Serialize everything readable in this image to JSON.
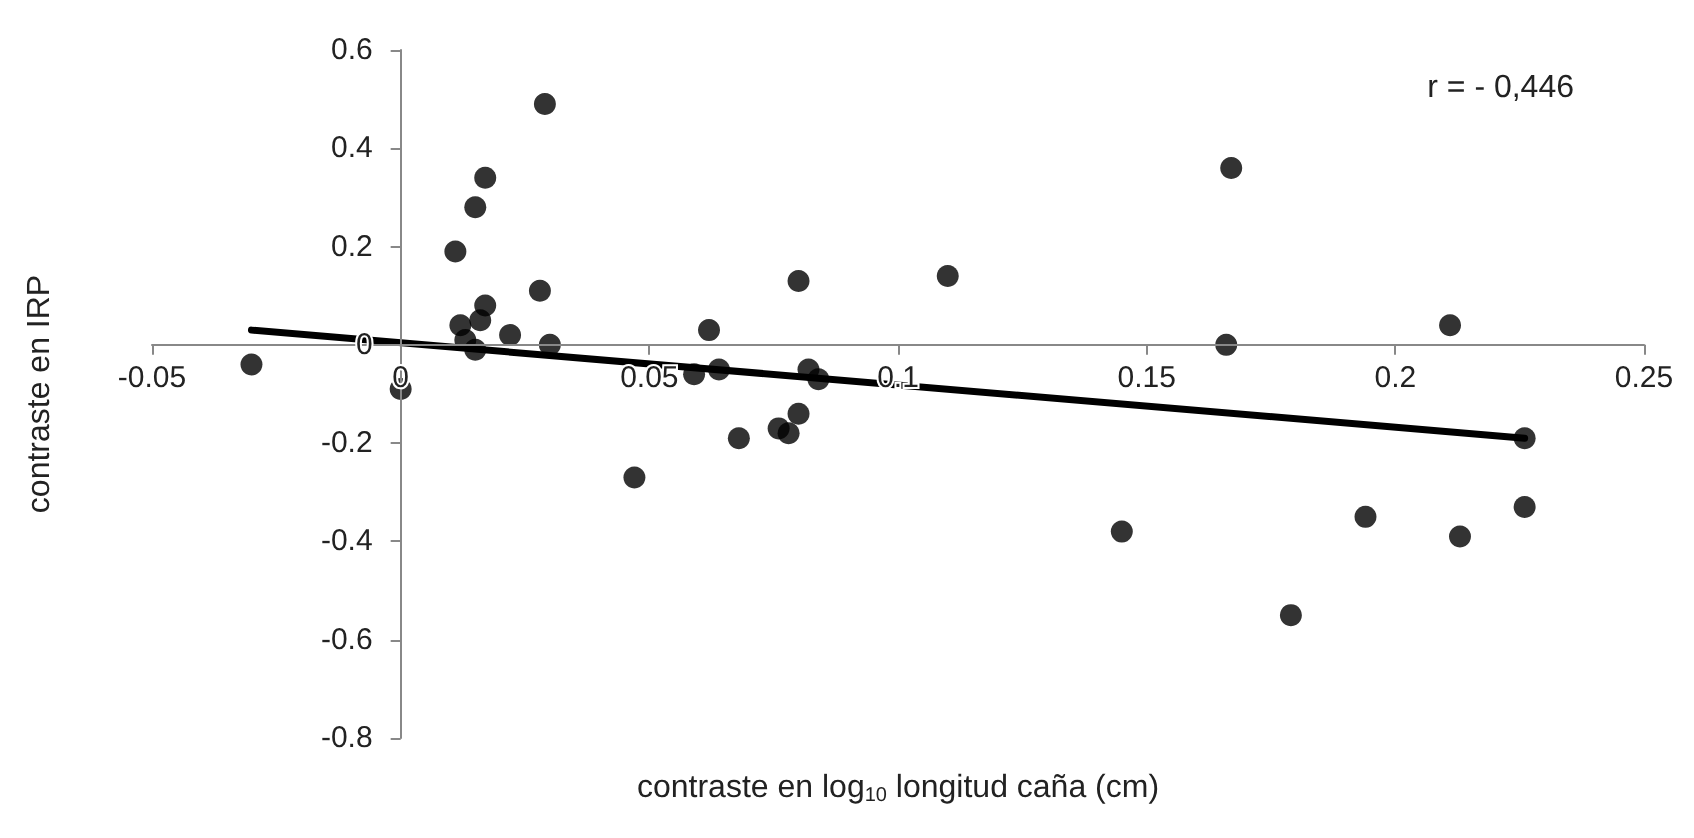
{
  "chart_data": {
    "type": "scatter",
    "xlabel": "contraste en log$_{10}$ longitud caña (cm)",
    "ylabel": "contraste en IRP",
    "annotations": [
      "r = - 0,446"
    ],
    "x": [
      -0.03,
      0,
      0.011,
      0.012,
      0.013,
      0.015,
      0.015,
      0.016,
      0.017,
      0.017,
      0.022,
      0.029,
      0.028,
      0.03,
      0.047,
      0.059,
      0.062,
      0.064,
      0.068,
      0.076,
      0.078,
      0.08,
      0.08,
      0.082,
      0.084,
      0.11,
      0.145,
      0.166,
      0.167,
      0.179,
      0.194,
      0.211,
      0.213,
      0.226,
      0.226
    ],
    "series": [
      {
        "color": "#000000",
        "values": [
          -0.04,
          -0.09,
          0.19,
          0.04,
          0.01,
          -0.01,
          0.28,
          0.05,
          0.08,
          0.34,
          0.02,
          0.49,
          0.11,
          0.0,
          -0.27,
          -0.06,
          0.03,
          -0.05,
          -0.19,
          -0.17,
          -0.18,
          -0.14,
          0.13,
          -0.05,
          -0.07,
          0.14,
          -0.38,
          0.0,
          0.36,
          -0.55,
          -0.35,
          0.04,
          -0.39,
          -0.19,
          -0.33
        ]
      },
      {
        "type": "line",
        "color": "#000000",
        "x": [
          -0.03,
          0.226
        ],
        "values": [
          0.03,
          -0.19
        ],
        "marker": "none"
      }
    ],
    "xlim": [
      -0.05,
      0.25
    ],
    "xticks": [
      -0.05,
      0,
      0.05,
      0.1,
      0.15,
      0.2,
      0.25
    ],
    "ylim": [
      -0.8,
      0.6
    ],
    "yticks": [
      -0.8,
      -0.6,
      -0.4,
      -0.2,
      0,
      0.2,
      0.4,
      0.6
    ],
    "marker": "circle"
  }
}
